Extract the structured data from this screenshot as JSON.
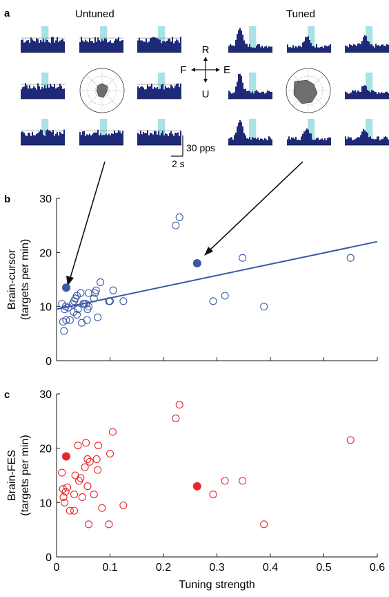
{
  "panel_a": {
    "label": "a",
    "untuned_title": "Untuned",
    "tuned_title": "Tuned",
    "directions": {
      "up": "R",
      "down": "U",
      "left": "F",
      "right": "E"
    },
    "scalebar_y_label": "30 pps",
    "scalebar_x_label": "2 s",
    "colors": {
      "histogram": "#1e2a78",
      "highlight": "#a9e1e4",
      "polar_fill": "#6e6e6e",
      "arrow": "#111111"
    }
  },
  "chart_data": [
    {
      "panel": "b",
      "type": "scatter",
      "ylabel": "Brain-cursor\n(targets per min)",
      "xlabel": "",
      "xlim": [
        0,
        0.6
      ],
      "ylim": [
        0,
        30
      ],
      "xticks": [
        0,
        0.1,
        0.2,
        0.3,
        0.4,
        0.5,
        0.6
      ],
      "yticks": [
        0,
        10,
        20,
        30
      ],
      "x_tick_labels_visible": false,
      "color": "#3a57a8",
      "points": [
        [
          0.01,
          10.5
        ],
        [
          0.012,
          7.2
        ],
        [
          0.014,
          5.5
        ],
        [
          0.015,
          9.5
        ],
        [
          0.017,
          10
        ],
        [
          0.018,
          7.5
        ],
        [
          0.022,
          9.8
        ],
        [
          0.025,
          7.5
        ],
        [
          0.03,
          10.5
        ],
        [
          0.032,
          9
        ],
        [
          0.033,
          11
        ],
        [
          0.035,
          11.5
        ],
        [
          0.038,
          12
        ],
        [
          0.038,
          8.5
        ],
        [
          0.04,
          9.5
        ],
        [
          0.045,
          12.5
        ],
        [
          0.047,
          7
        ],
        [
          0.05,
          10.5
        ],
        [
          0.052,
          10.5
        ],
        [
          0.055,
          10.5
        ],
        [
          0.057,
          7.5
        ],
        [
          0.058,
          9.5
        ],
        [
          0.06,
          12.5
        ],
        [
          0.06,
          10
        ],
        [
          0.07,
          11.5
        ],
        [
          0.072,
          12.5
        ],
        [
          0.074,
          13
        ],
        [
          0.077,
          8
        ],
        [
          0.082,
          14.5
        ],
        [
          0.098,
          11
        ],
        [
          0.1,
          11
        ],
        [
          0.106,
          13
        ],
        [
          0.125,
          11
        ],
        [
          0.223,
          25
        ],
        [
          0.23,
          26.5
        ],
        [
          0.293,
          11
        ],
        [
          0.315,
          12
        ],
        [
          0.348,
          19
        ],
        [
          0.388,
          10
        ],
        [
          0.55,
          19
        ]
      ],
      "highlighted_points": [
        [
          0.018,
          13.5
        ],
        [
          0.263,
          18
        ]
      ],
      "fit_line": {
        "x": [
          0,
          0.6
        ],
        "y": [
          9.5,
          22
        ]
      }
    },
    {
      "panel": "c",
      "type": "scatter",
      "ylabel": "Brain-FES\n(targets per min)",
      "xlabel": "Tuning strength",
      "xlim": [
        0,
        0.6
      ],
      "ylim": [
        0,
        30
      ],
      "xticks": [
        0,
        0.1,
        0.2,
        0.3,
        0.4,
        0.5,
        0.6
      ],
      "yticks": [
        0,
        10,
        20,
        30
      ],
      "color": "#e8262b",
      "points": [
        [
          0.01,
          15.5
        ],
        [
          0.012,
          12.5
        ],
        [
          0.013,
          11
        ],
        [
          0.015,
          10
        ],
        [
          0.017,
          12
        ],
        [
          0.02,
          12.8
        ],
        [
          0.025,
          8.5
        ],
        [
          0.033,
          8.5
        ],
        [
          0.033,
          11.5
        ],
        [
          0.035,
          15
        ],
        [
          0.04,
          20.5
        ],
        [
          0.042,
          14
        ],
        [
          0.045,
          14.5
        ],
        [
          0.048,
          11
        ],
        [
          0.053,
          16.5
        ],
        [
          0.055,
          21
        ],
        [
          0.058,
          13
        ],
        [
          0.058,
          18
        ],
        [
          0.06,
          6
        ],
        [
          0.062,
          17.5
        ],
        [
          0.07,
          11.5
        ],
        [
          0.075,
          18
        ],
        [
          0.077,
          16
        ],
        [
          0.078,
          20.5
        ],
        [
          0.085,
          9
        ],
        [
          0.098,
          6
        ],
        [
          0.1,
          19
        ],
        [
          0.105,
          23
        ],
        [
          0.125,
          9.5
        ],
        [
          0.223,
          25.5
        ],
        [
          0.23,
          28
        ],
        [
          0.293,
          11.5
        ],
        [
          0.315,
          14
        ],
        [
          0.348,
          14
        ],
        [
          0.388,
          6
        ],
        [
          0.55,
          21.5
        ]
      ],
      "highlighted_points": [
        [
          0.018,
          18.5
        ],
        [
          0.263,
          13
        ]
      ]
    }
  ]
}
